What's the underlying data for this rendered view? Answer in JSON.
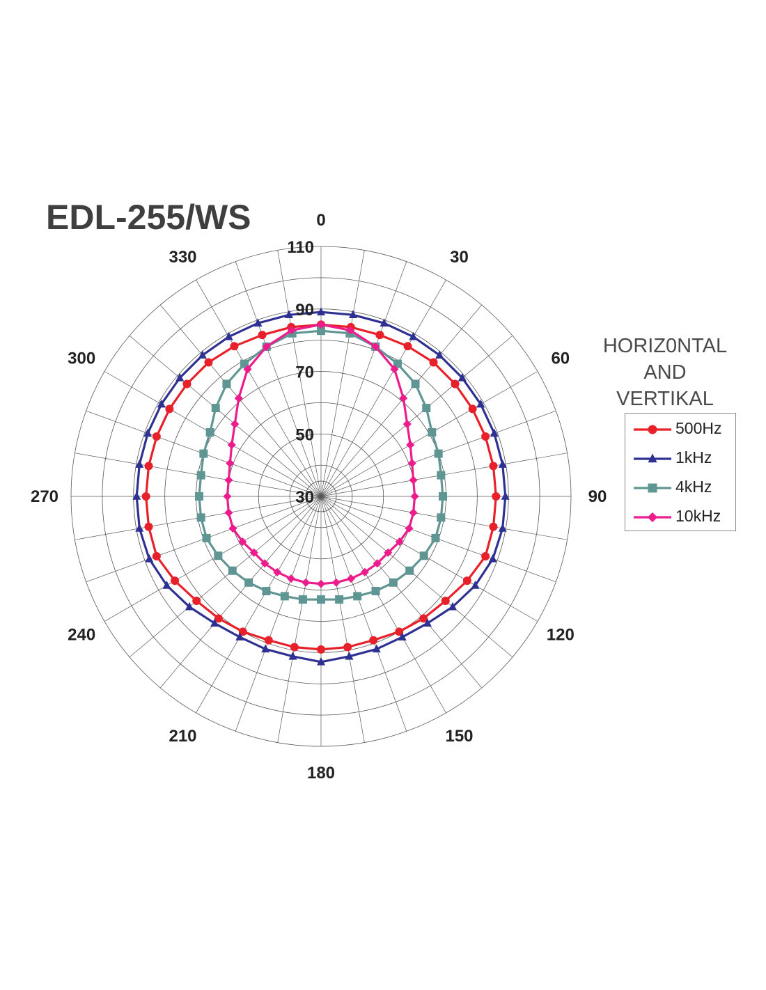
{
  "title": "EDL-255/WS",
  "legend": {
    "heading": [
      "HORIZ0NTAL",
      "AND",
      "VERTIKAL"
    ],
    "items": [
      {
        "label": "500Hz",
        "color": "#e8202a",
        "marker": "circle"
      },
      {
        "label": "1kHz",
        "color": "#2e3192",
        "marker": "triangle"
      },
      {
        "label": "4kHz",
        "color": "#5f9693",
        "marker": "square"
      },
      {
        "label": "10kHz",
        "color": "#ec1c8c",
        "marker": "diamond"
      }
    ]
  },
  "chart_data": {
    "type": "polar-line",
    "title": "EDL-255/WS",
    "angle_ticks": [
      "0",
      "30",
      "60",
      "90",
      "120",
      "150",
      "180",
      "210",
      "240",
      "270",
      "300",
      "330"
    ],
    "radial_labels": [
      "30",
      "50",
      "70",
      "90",
      "110"
    ],
    "rlim": [
      30,
      110
    ],
    "angle_step_deg": 10,
    "series": [
      {
        "name": "500Hz",
        "color": "#e8202a",
        "marker": "circle",
        "values": [
          85,
          85,
          85,
          85.5,
          86,
          86,
          86,
          86,
          86,
          86,
          86,
          86,
          84,
          82,
          81,
          80,
          79,
          79,
          79,
          79,
          79,
          80,
          81,
          82,
          84,
          86,
          86,
          86,
          86,
          86,
          86,
          86,
          86,
          85.5,
          85,
          85
        ]
      },
      {
        "name": "1kHz",
        "color": "#2e3192",
        "marker": "triangle",
        "values": [
          89,
          89,
          89,
          89,
          89,
          89,
          89,
          89,
          89,
          89,
          89,
          88.5,
          87,
          85,
          83,
          82,
          82,
          82,
          83,
          82,
          82,
          82,
          83,
          85,
          87,
          88.5,
          89,
          89,
          89,
          89,
          89,
          89,
          89,
          89,
          89,
          89
        ]
      },
      {
        "name": "4kHz",
        "color": "#5f9693",
        "marker": "square",
        "values": [
          83,
          83,
          81,
          79,
          77,
          74,
          71,
          70,
          69,
          69,
          69,
          69,
          68,
          67,
          66,
          65,
          64,
          63.5,
          63,
          63.5,
          64,
          65,
          66,
          67,
          68,
          69,
          69,
          69,
          69,
          70,
          71,
          74,
          77,
          79,
          81,
          83
        ]
      },
      {
        "name": "10kHz",
        "color": "#ec1c8c",
        "marker": "diamond",
        "values": [
          85,
          84,
          81,
          77,
          71,
          66,
          63,
          61,
          60,
          60,
          60,
          60,
          59,
          58,
          58,
          58,
          58,
          58,
          58,
          58,
          58,
          58,
          58,
          58,
          59,
          60,
          60,
          60,
          60,
          61,
          63,
          66,
          71,
          77,
          81,
          84
        ]
      }
    ]
  }
}
